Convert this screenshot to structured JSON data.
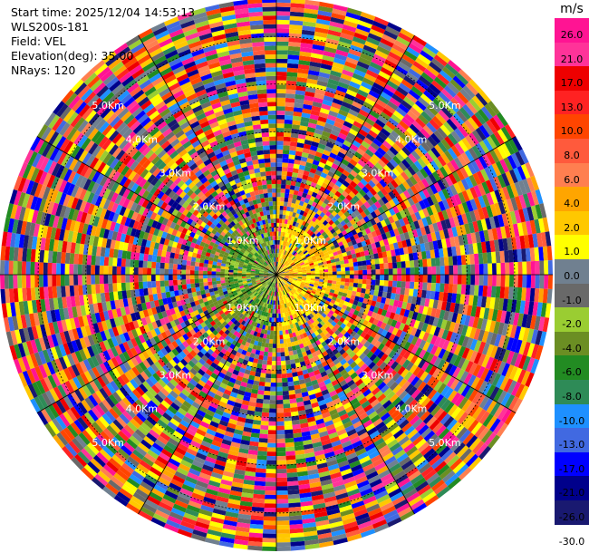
{
  "info": {
    "start_time": "Start time: 2025/12/04 14:53:13",
    "instrument": "WLS200s-181",
    "field": "Field: VEL",
    "elevation": "Elevation(deg): 35.00",
    "nrays": "NRays: 120"
  },
  "colorbar": {
    "unit": "m/s",
    "ticks": [
      "26.0",
      "21.0",
      "17.0",
      "13.0",
      "10.0",
      "8.0",
      "6.0",
      "4.0",
      "2.0",
      "1.0",
      "0.0",
      "-1.0",
      "-2.0",
      "-4.0",
      "-6.0",
      "-8.0",
      "-10.0",
      "-13.0",
      "-17.0",
      "-21.0",
      "-26.0",
      "-30.0"
    ],
    "colors": [
      "#ff1493",
      "#ff3399",
      "#ee0000",
      "#ff2222",
      "#ff4500",
      "#ff5a3c",
      "#ff7f50",
      "#ffa500",
      "#ffc800",
      "#ffff00",
      "#708090",
      "#696969",
      "#9acd32",
      "#6b8e23",
      "#228b22",
      "#2e8b57",
      "#1e90ff",
      "#4169e1",
      "#0000ff",
      "#00008b",
      "#191970"
    ]
  },
  "chart_data": {
    "type": "heatmap",
    "subtype": "PPI polar scan",
    "field": "VEL",
    "units": "m/s",
    "nrays": 120,
    "elevation_deg": 35.0,
    "range_rings_km": [
      1.0,
      2.0,
      3.0,
      4.0,
      5.0
    ],
    "ring_labels": [
      "1.0Km",
      "2.0Km",
      "3.0Km",
      "4.0Km",
      "5.0Km"
    ],
    "value_range": [
      -30.0,
      26.0
    ],
    "near_field_pattern": "positive velocities (yellow/orange, ~2 to 6 m/s) east of center, negative velocities (green, ~-2 to -6 m/s) west of center within ~1 km; beyond ~1.5 km mostly noise spanning full range"
  }
}
